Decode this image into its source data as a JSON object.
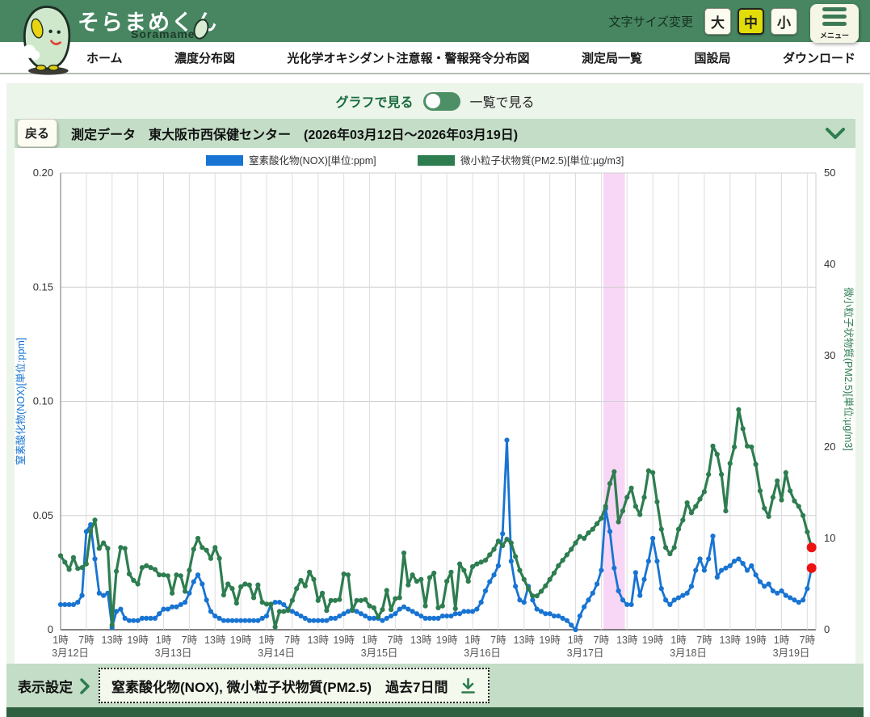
{
  "header": {
    "site_title": "そらまめくん",
    "site_subtitle": "Soramame",
    "font_size_label": "文字サイズ変更",
    "font_size_options": [
      {
        "label": "大",
        "selected": false
      },
      {
        "label": "中",
        "selected": true
      },
      {
        "label": "小",
        "selected": false
      }
    ],
    "menu_label": "メニュー"
  },
  "nav": {
    "items": [
      "ホーム",
      "濃度分布図",
      "光化学オキシダント注意報・警報発令分布図",
      "測定局一覧",
      "国設局",
      "ダウンロード"
    ]
  },
  "view_toggle": {
    "left_label": "グラフで見る",
    "right_label": "一覧で見る",
    "state": "graph"
  },
  "title_bar": {
    "back_label": "戻る",
    "title": "測定データ　東大阪市西保健センター　(2026年03月12日〜2026年03月19日)"
  },
  "bottom_bar": {
    "settings_label": "表示設定",
    "selection_label": "窒素酸化物(NOX), 微小粒子状物質(PM2.5)　過去7日間",
    "download_icon": "download-icon"
  },
  "chart_data": {
    "type": "line",
    "legend": [
      {
        "name": "窒素酸化物(NOX)[単位:ppm]",
        "color": "#1874d2"
      },
      {
        "name": "微小粒子状物質(PM2.5)[単位:µg/m3]",
        "color": "#2e7d50"
      }
    ],
    "left_axis": {
      "label": "窒素酸化物(NOX)[単位:ppm]",
      "min": 0,
      "max": 0.2,
      "ticks": [
        "0.20",
        "0.15",
        "0.10",
        "0.05",
        "0"
      ],
      "color": "#1874d2"
    },
    "right_axis": {
      "label": "微小粒子状物質(PM2.5)[単位:µg/m3]",
      "min": 0,
      "max": 50,
      "ticks": [
        "50",
        "40",
        "30",
        "20",
        "10",
        "0"
      ],
      "color": "#2e7d50"
    },
    "x_axis": {
      "days": [
        "3月12日",
        "3月13日",
        "3月14日",
        "3月15日",
        "3月16日",
        "3月17日",
        "3月18日",
        "3月19日"
      ],
      "hour_tick_labels": [
        "1時",
        "7時",
        "13時",
        "19時"
      ],
      "hour_ticks": [
        1,
        7,
        13,
        19
      ],
      "hours_per_day": 24,
      "last_day_hours": 8
    },
    "highlight_band": {
      "date": "3月17日",
      "start_hour": 8,
      "end_hour": 13,
      "color": "#f8d7f6"
    },
    "latest_point_color": "#ee1111",
    "grid": true,
    "series": [
      {
        "name": "窒素酸化物(NOX)",
        "axis": "left",
        "color": "#1874d2",
        "values": [
          0.011,
          0.011,
          0.011,
          0.011,
          0.012,
          0.015,
          0.043,
          0.046,
          0.031,
          0.016,
          0.015,
          0.016,
          0.001,
          0.008,
          0.009,
          0.005,
          0.004,
          0.004,
          0.004,
          0.005,
          0.005,
          0.005,
          0.005,
          0.007,
          0.009,
          0.009,
          0.01,
          0.01,
          0.011,
          0.012,
          0.016,
          0.021,
          0.024,
          0.02,
          0.013,
          0.008,
          0.006,
          0.005,
          0.004,
          0.004,
          0.004,
          0.004,
          0.004,
          0.004,
          0.004,
          0.004,
          0.004,
          0.005,
          0.006,
          0.011,
          0.012,
          0.012,
          0.011,
          0.009,
          0.008,
          0.007,
          0.006,
          0.005,
          0.004,
          0.004,
          0.004,
          0.004,
          0.004,
          0.005,
          0.005,
          0.006,
          0.007,
          0.008,
          0.009,
          0.008,
          0.007,
          0.006,
          0.005,
          0.005,
          0.005,
          0.004,
          0.005,
          0.006,
          0.007,
          0.009,
          0.01,
          0.009,
          0.008,
          0.007,
          0.006,
          0.005,
          0.005,
          0.005,
          0.005,
          0.006,
          0.006,
          0.006,
          0.007,
          0.007,
          0.008,
          0.008,
          0.008,
          0.009,
          0.012,
          0.017,
          0.021,
          0.024,
          0.028,
          0.042,
          0.083,
          0.03,
          0.019,
          0.013,
          0.012,
          0.019,
          0.013,
          0.009,
          0.008,
          0.007,
          0.007,
          0.006,
          0.006,
          0.005,
          0.004,
          0.002,
          0.0,
          0.006,
          0.01,
          0.013,
          0.016,
          0.02,
          0.026,
          0.053,
          0.043,
          0.027,
          0.017,
          0.013,
          0.011,
          0.011,
          0.025,
          0.015,
          0.022,
          0.03,
          0.04,
          0.03,
          0.018,
          0.013,
          0.011,
          0.013,
          0.014,
          0.015,
          0.016,
          0.019,
          0.026,
          0.031,
          0.026,
          0.031,
          0.041,
          0.023,
          0.026,
          0.027,
          0.028,
          0.03,
          0.031,
          0.029,
          0.026,
          0.028,
          0.024,
          0.021,
          0.019,
          0.02,
          0.017,
          0.016,
          0.017,
          0.015,
          0.014,
          0.013,
          0.012,
          0.013,
          0.018,
          0.027
        ]
      },
      {
        "name": "微小粒子状物質(PM2.5)",
        "axis": "right",
        "color": "#2e7d50",
        "values": [
          8.1,
          7.4,
          6.6,
          7.9,
          6.7,
          6.8,
          7.2,
          10.8,
          12.0,
          8.9,
          9.5,
          8.9,
          0.5,
          6.4,
          9.0,
          8.9,
          6.1,
          5.4,
          5.0,
          6.8,
          7.0,
          6.8,
          6.6,
          6.0,
          6.0,
          5.9,
          4.0,
          6.0,
          5.9,
          4.2,
          6.5,
          8.8,
          10.0,
          9.0,
          8.7,
          7.8,
          9.0,
          7.8,
          3.8,
          5.0,
          4.5,
          2.9,
          4.7,
          5.0,
          4.9,
          3.5,
          4.9,
          3.0,
          2.8,
          2.8,
          0.3,
          2.0,
          2.0,
          2.1,
          3.2,
          4.5,
          5.4,
          4.8,
          6.3,
          5.5,
          3.2,
          4.0,
          2.1,
          3.2,
          3.2,
          3.3,
          6.1,
          6.0,
          2.1,
          3.2,
          3.2,
          3.3,
          2.6,
          2.4,
          1.4,
          2.2,
          4.3,
          2.2,
          3.4,
          3.5,
          8.4,
          4.9,
          6.0,
          5.3,
          5.5,
          2.6,
          5.7,
          6.2,
          2.4,
          2.6,
          5.3,
          6.3,
          2.3,
          7.2,
          6.5,
          5.3,
          6.9,
          7.2,
          7.4,
          7.6,
          8.2,
          8.8,
          9.7,
          9.2,
          9.9,
          9.5,
          8.0,
          6.5,
          5.5,
          4.5,
          3.7,
          3.7,
          4.2,
          4.8,
          5.5,
          6.2,
          7.0,
          7.6,
          8.2,
          8.8,
          9.5,
          10.2,
          10.0,
          10.6,
          11.0,
          11.6,
          12.2,
          13.5,
          16.0,
          17.3,
          11.8,
          13.0,
          14.5,
          15.5,
          13.5,
          12.6,
          14.5,
          17.4,
          17.2,
          14.0,
          11.0,
          9.0,
          8.3,
          9.0,
          11.0,
          12.0,
          13.9,
          12.8,
          13.5,
          14.3,
          15.1,
          17.0,
          20.1,
          19.2,
          17.0,
          13.0,
          18.2,
          20.0,
          24.1,
          22.0,
          20.1,
          20.0,
          18.1,
          15.2,
          13.3,
          12.4,
          14.5,
          16.3,
          14.2,
          17.2,
          15.2,
          14.1,
          13.5,
          12.5,
          10.7,
          9.0
        ]
      }
    ]
  }
}
